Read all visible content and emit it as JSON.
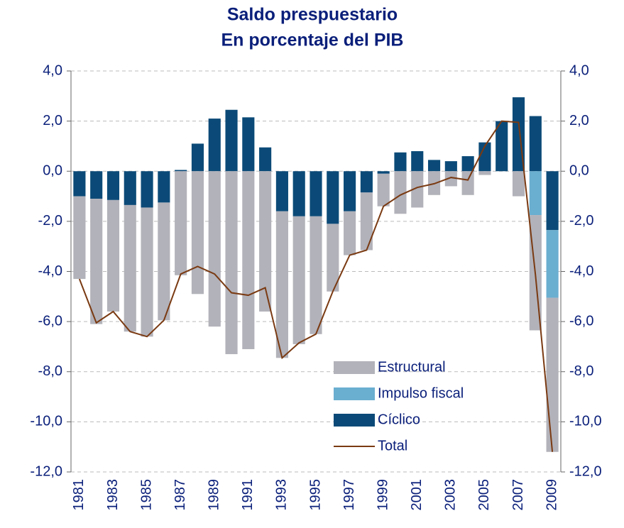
{
  "chart_data": {
    "type": "bar",
    "title": "Saldo prespuestario",
    "subtitle": "En porcentaje del PIB",
    "categories": [
      "1981",
      null,
      "1983",
      null,
      "1985",
      null,
      "1987",
      null,
      "1989",
      null,
      "1991",
      null,
      "1993",
      null,
      "1995",
      null,
      "1997",
      null,
      "1999",
      null,
      "2001",
      null,
      "2003",
      null,
      "2005",
      null,
      "2007",
      null,
      "2009"
    ],
    "series": [
      {
        "name": "Estructural",
        "type": "bar",
        "color": "#b2b2ba",
        "values": [
          -3.3,
          -5.0,
          -4.45,
          -5.05,
          -5.15,
          -4.7,
          -4.15,
          -4.9,
          -6.2,
          -7.3,
          -7.1,
          -5.6,
          -5.85,
          -5.1,
          -4.7,
          -2.7,
          -1.75,
          -2.3,
          -1.3,
          -1.7,
          -1.45,
          -0.95,
          -0.6,
          -0.95,
          -0.15,
          0,
          -1.0,
          -4.6,
          -6.15
        ]
      },
      {
        "name": "Impulso fiscal",
        "type": "bar",
        "color": "#6aaed0",
        "values": [
          null,
          null,
          null,
          null,
          null,
          null,
          null,
          null,
          null,
          null,
          null,
          null,
          null,
          null,
          null,
          null,
          null,
          null,
          null,
          null,
          null,
          null,
          null,
          null,
          null,
          null,
          null,
          -1.75,
          -2.7
        ]
      },
      {
        "name": "Cíclico",
        "type": "bar",
        "color": "#0b4a78",
        "values": [
          -1.0,
          -1.1,
          -1.15,
          -1.35,
          -1.45,
          -1.25,
          0.05,
          1.1,
          2.1,
          2.45,
          2.15,
          0.95,
          -1.6,
          -1.8,
          -1.8,
          -2.1,
          -1.6,
          -0.85,
          -0.1,
          0.75,
          0.8,
          0.45,
          0.4,
          0.6,
          1.15,
          2.0,
          2.95,
          2.2,
          -2.35
        ]
      },
      {
        "name": "Total",
        "type": "line",
        "color": "#7a3a12",
        "values": [
          -4.3,
          -6.05,
          -5.6,
          -6.4,
          -6.6,
          -5.95,
          -4.1,
          -3.8,
          -4.1,
          -4.85,
          -4.95,
          -4.65,
          -7.45,
          -6.85,
          -6.5,
          -4.8,
          -3.35,
          -3.15,
          -1.4,
          -0.95,
          -0.65,
          -0.5,
          -0.25,
          -0.35,
          1.0,
          2.0,
          1.95,
          -4.15,
          -11.2
        ]
      }
    ],
    "ylim": [
      -12,
      4
    ],
    "yticks": [
      {
        "value": -12,
        "label": "-12,0"
      },
      {
        "value": -10,
        "label": "-10,0"
      },
      {
        "value": -8,
        "label": "-8,0"
      },
      {
        "value": -6,
        "label": "-6,0"
      },
      {
        "value": -4,
        "label": "-4,0"
      },
      {
        "value": -2,
        "label": "-2,0"
      },
      {
        "value": 0,
        "label": "0,0"
      },
      {
        "value": 2,
        "label": "2,0"
      },
      {
        "value": 4,
        "label": "4,0"
      }
    ],
    "y2lim": [
      -12,
      4
    ],
    "y2ticks": [
      {
        "value": -12,
        "label": "-12,0"
      },
      {
        "value": -10,
        "label": "-10,0"
      },
      {
        "value": -8,
        "label": "-8,0"
      },
      {
        "value": -6,
        "label": "-6,0"
      },
      {
        "value": -4,
        "label": "-4,0"
      },
      {
        "value": -2,
        "label": "-2,0"
      },
      {
        "value": 0,
        "label": "0,0"
      },
      {
        "value": 2,
        "label": "2,0"
      },
      {
        "value": 4,
        "label": "4,0"
      }
    ],
    "grid": true,
    "legend": "lower-center"
  }
}
